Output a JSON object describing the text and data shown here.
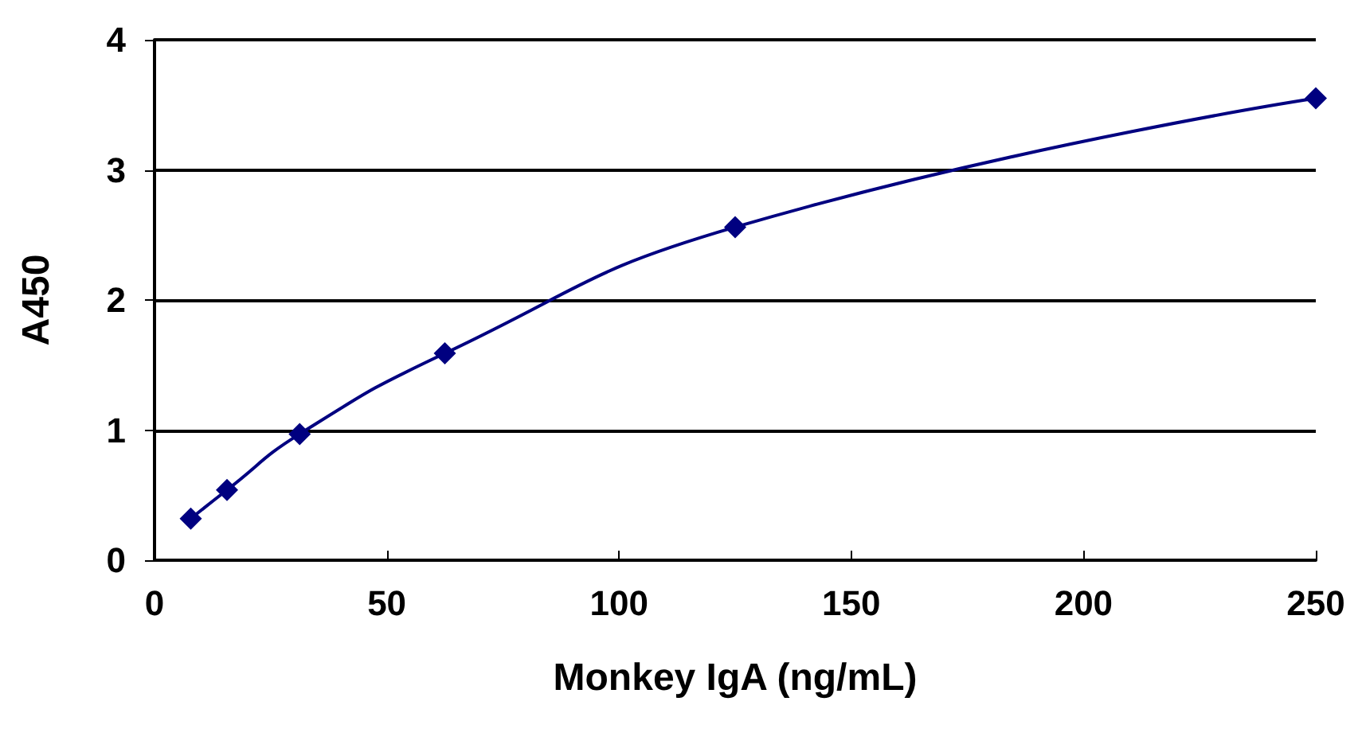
{
  "chart_data": {
    "type": "line",
    "xlabel": "Monkey IgA (ng/mL)",
    "ylabel": "A450",
    "x": [
      7.8,
      15.6,
      31.25,
      62.5,
      125,
      250
    ],
    "series": [
      {
        "color": "#000080",
        "values": [
          0.32,
          0.54,
          0.97,
          1.59,
          2.56,
          3.55
        ]
      }
    ],
    "xlim": [
      0,
      250
    ],
    "xticks": [
      0,
      50,
      100,
      150,
      200,
      250
    ],
    "ylim": [
      0,
      4
    ],
    "yticks": [
      0,
      1,
      2,
      3,
      4
    ],
    "grid": "y",
    "marker": "diamond",
    "line_style": "solid"
  }
}
